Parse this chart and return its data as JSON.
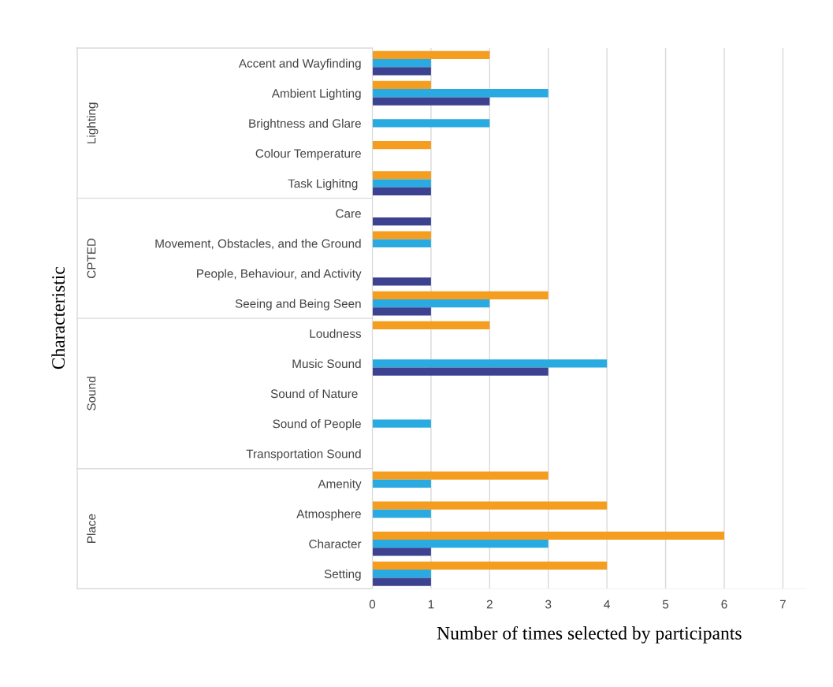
{
  "chart_data": {
    "type": "bar",
    "orientation": "horizontal",
    "xlabel": "Number of times selected by participants",
    "ylabel": "Characteristic",
    "categories": [
      "Accent and Wayfinding",
      "Ambient Lighting",
      "Brightness and Glare",
      "Colour Temperature",
      "Task Lighitng ",
      "Care",
      "Movement, Obstacles, and the Ground",
      "People, Behaviour, and Activity",
      "Seeing and Being Seen",
      "Loudness",
      "Music Sound",
      "Sound of Nature ",
      "Sound of People",
      "Transportation Sound",
      "Amenity",
      "Atmosphere",
      "Character",
      "Setting"
    ],
    "series": [
      {
        "color": "#f59d1e",
        "values": [
          2,
          1,
          0,
          1,
          1,
          0,
          1,
          0,
          3,
          2,
          0,
          0,
          0,
          0,
          3,
          4,
          6,
          4
        ]
      },
      {
        "color": "#29aae1",
        "values": [
          1,
          3,
          2,
          0,
          1,
          0,
          1,
          0,
          2,
          0,
          4,
          0,
          1,
          0,
          1,
          1,
          3,
          1
        ]
      },
      {
        "color": "#3c4190",
        "values": [
          1,
          2,
          0,
          0,
          1,
          1,
          0,
          1,
          1,
          0,
          3,
          0,
          0,
          0,
          0,
          0,
          1,
          1
        ]
      }
    ],
    "annotations": [
      "Lighting",
      "CPTED",
      "Sound",
      "Place"
    ],
    "xlim": [
      0,
      7.4
    ],
    "xticks": [
      0,
      1,
      2,
      3,
      4,
      5,
      6,
      7
    ],
    "grid": "x",
    "legend": false
  }
}
